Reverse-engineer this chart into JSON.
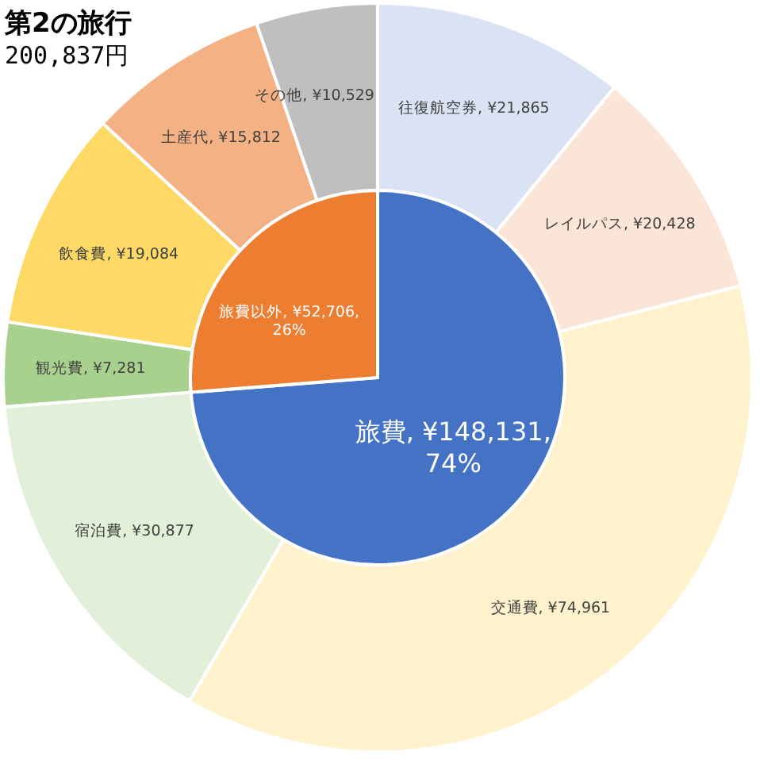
{
  "chart_data": [
    {
      "type": "pie",
      "categories": [
        "旅費",
        "旅費以外"
      ],
      "values": [
        148131,
        52706
      ],
      "value_labels": [
        "¥148,131, 74%",
        "¥52,706, 26%"
      ],
      "colors": [
        "#4472c4",
        "#ed7d31"
      ]
    },
    {
      "type": "donut",
      "title": "第2の旅行",
      "subtitle": "200,837円",
      "categories": [
        "往復航空券",
        "レイルパス",
        "交通費",
        "宿泊費",
        "観光費",
        "飲食費",
        "土産代",
        "その他"
      ],
      "values": [
        21865,
        20428,
        74961,
        30877,
        7281,
        19084,
        15812,
        10529
      ],
      "value_labels": [
        "¥21,865",
        "¥20,428",
        "¥74,961",
        "¥30,877",
        "¥7,281",
        "¥19,084",
        "¥15,812",
        "¥10,529"
      ],
      "colors": [
        "#dae3f3",
        "#fbe5d6",
        "#fff2cc",
        "#e2f0d9",
        "#a9d18e",
        "#ffd966",
        "#f4b183",
        "#bfbfbf"
      ]
    }
  ]
}
